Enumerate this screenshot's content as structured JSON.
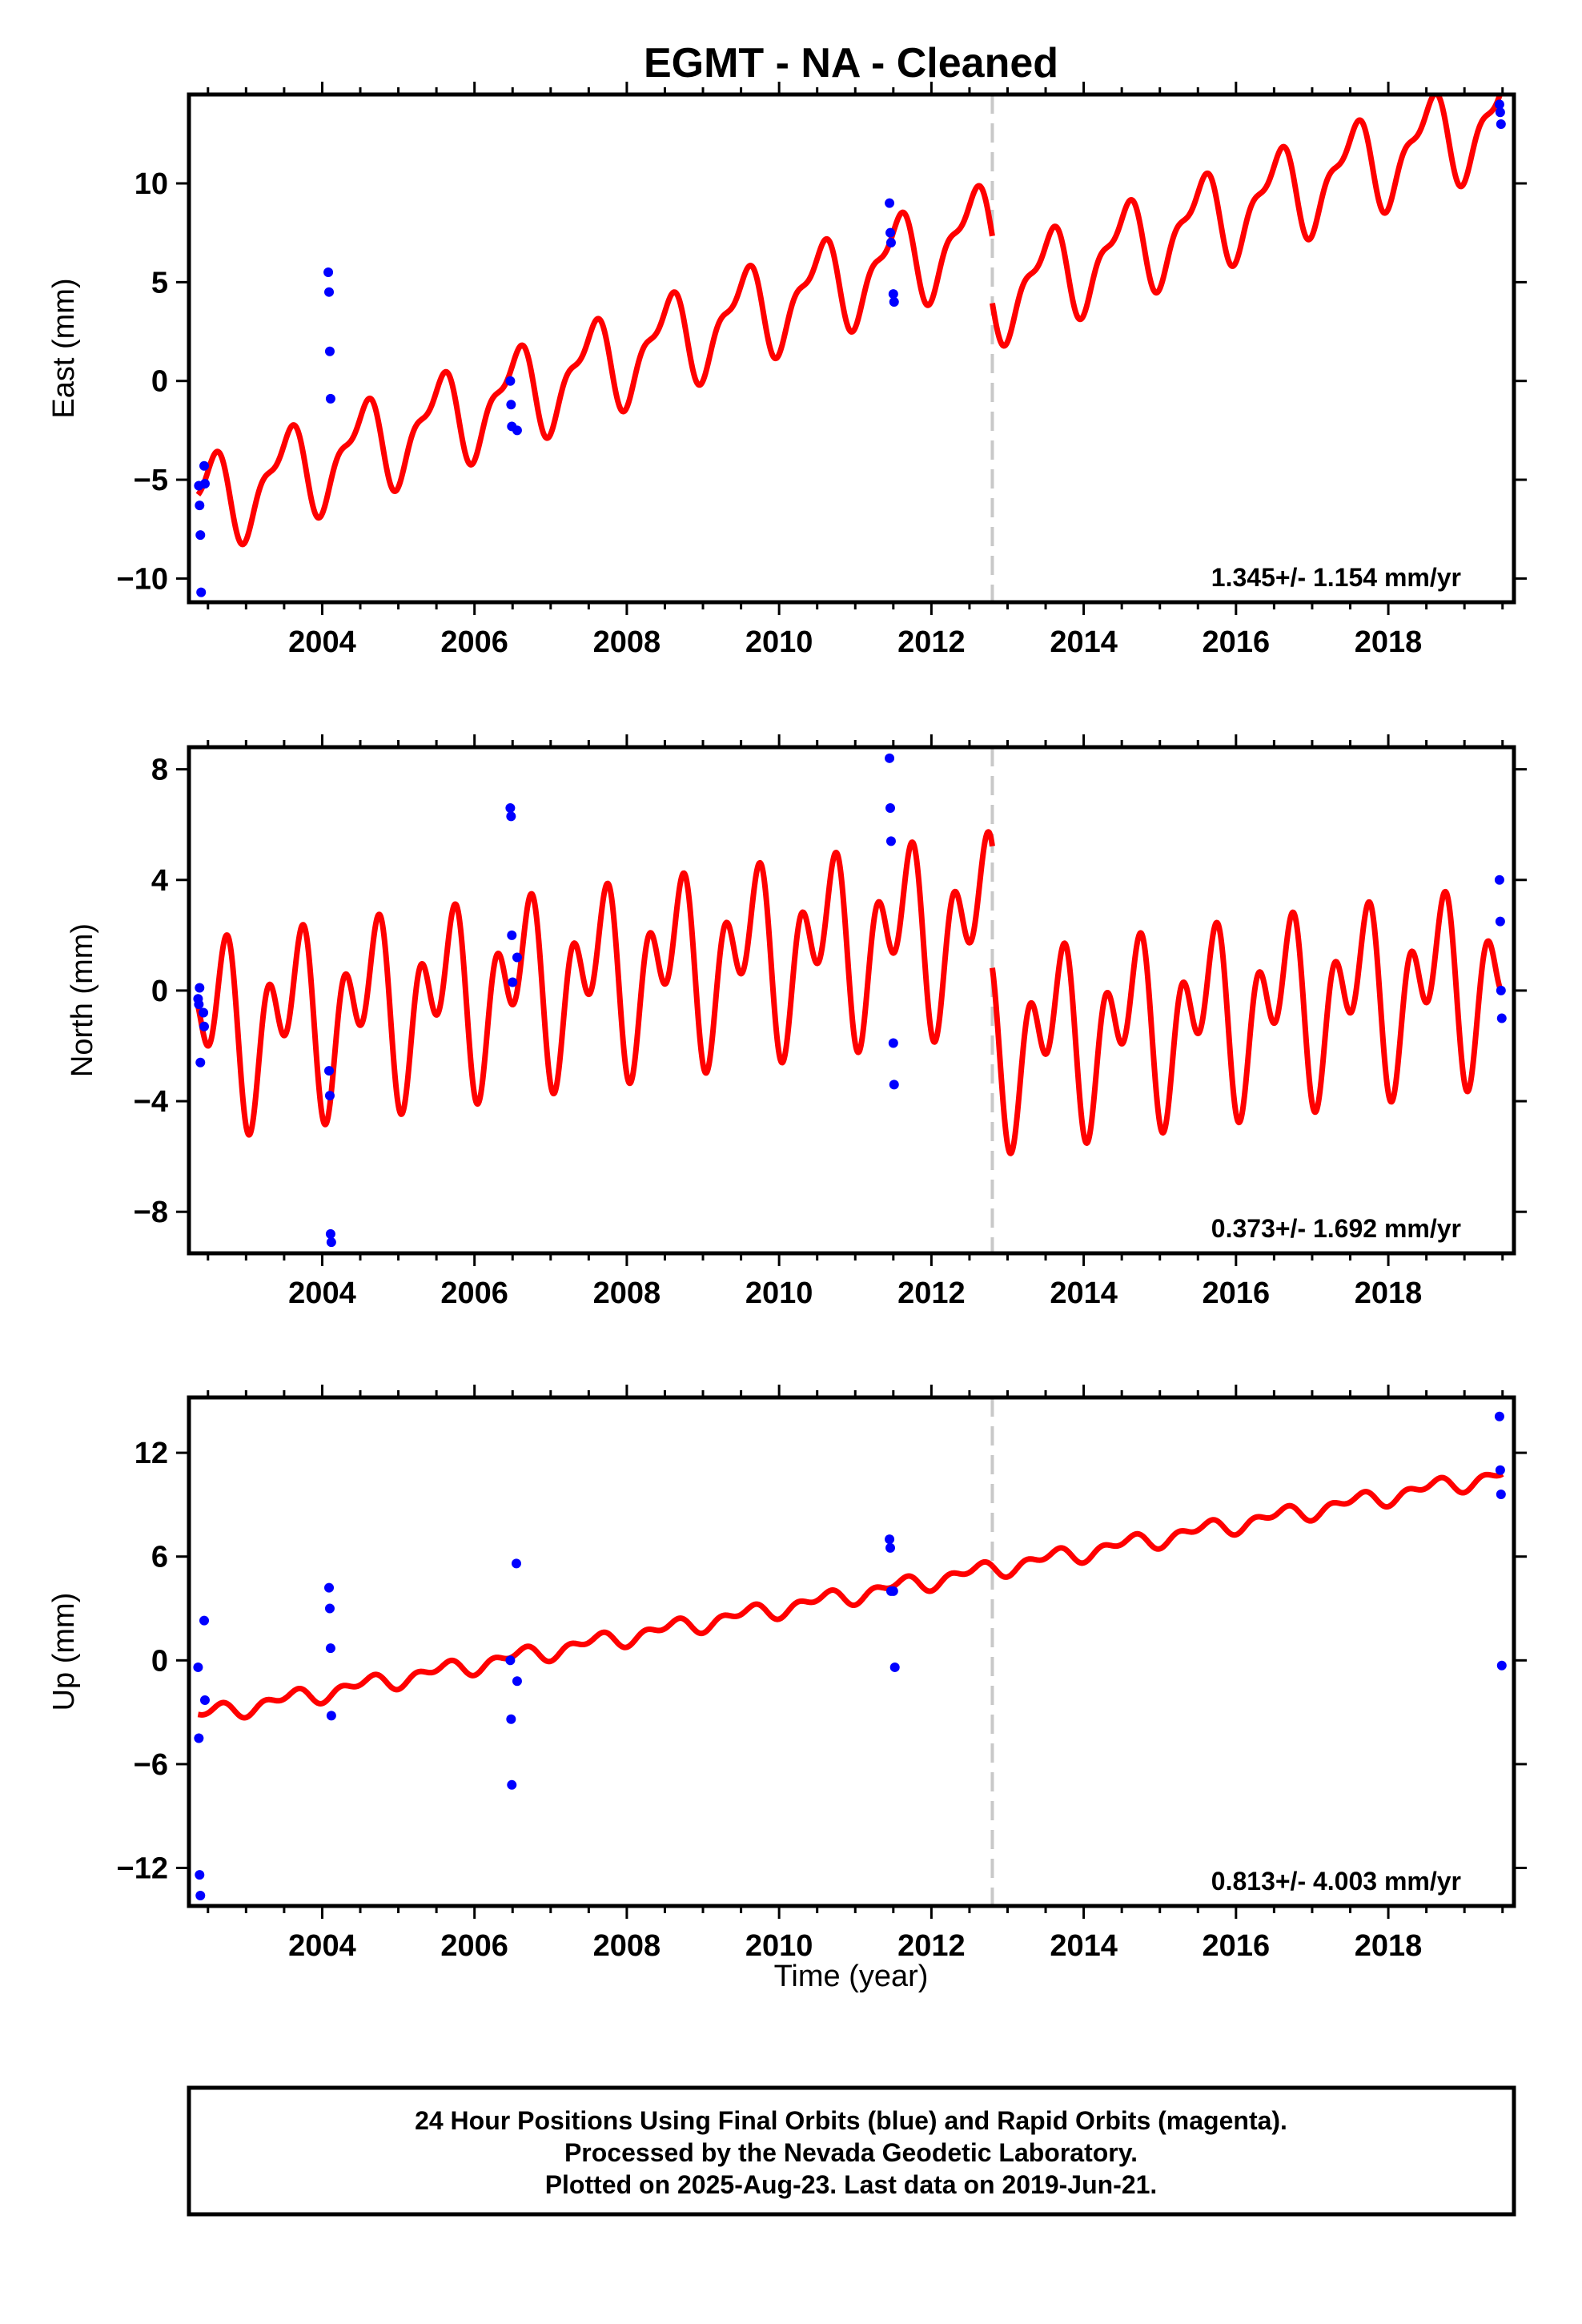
{
  "colors": {
    "model_line": "#ff0000",
    "final_orbits": "#0000ff",
    "break_line": "#c8c8c8",
    "frame": "#000000"
  },
  "title": "EGMT  - NA - Cleaned",
  "xlabel": "Time (year)",
  "footer": {
    "line1": "24 Hour Positions Using Final Orbits (blue) and Rapid Orbits (magenta).",
    "line2": "Processed by the Nevada Geodetic Laboratory.",
    "line3": "Plotted on 2025-Aug-23. Last data on 2019-Jun-21."
  },
  "chart_data": [
    {
      "type": "scatter",
      "ylabel": "East (mm)",
      "rate_text": "1.345+/- 1.154 mm/yr",
      "xlim": [
        2002.25,
        2019.65
      ],
      "ylim": [
        -11.2,
        14.5
      ],
      "x_ticks": [
        2004,
        2006,
        2008,
        2010,
        2012,
        2014,
        2016,
        2018
      ],
      "y_ticks": [
        -10,
        -5,
        0,
        5,
        10
      ],
      "y_tick_labels": [
        "−10",
        "−5",
        "0",
        "5",
        "10"
      ],
      "break_x": 2012.8,
      "model": {
        "before": {
          "x0": 2002.37,
          "x1": 2012.8,
          "base": -6.3,
          "slope": 1.345,
          "offset": 0.0
        },
        "after": {
          "x0": 2012.8,
          "x1": 2019.5,
          "base": -6.3,
          "slope": 1.345,
          "offset": -3.4
        },
        "annual_amp": 2.1,
        "annual_phase": 0.27,
        "semi_amp": 0.9,
        "semi_phase": 0.05
      },
      "points": [
        {
          "x": 2002.38,
          "y": -5.3
        },
        {
          "x": 2002.39,
          "y": -6.3
        },
        {
          "x": 2002.4,
          "y": -7.8
        },
        {
          "x": 2002.41,
          "y": -10.7
        },
        {
          "x": 2002.45,
          "y": -4.3
        },
        {
          "x": 2002.46,
          "y": -5.2
        },
        {
          "x": 2004.08,
          "y": 5.5
        },
        {
          "x": 2004.09,
          "y": 4.5
        },
        {
          "x": 2004.1,
          "y": 1.5
        },
        {
          "x": 2004.11,
          "y": -0.9
        },
        {
          "x": 2006.47,
          "y": 0.0
        },
        {
          "x": 2006.48,
          "y": -1.2
        },
        {
          "x": 2006.49,
          "y": -2.3
        },
        {
          "x": 2006.56,
          "y": -2.5
        },
        {
          "x": 2011.45,
          "y": 9.0
        },
        {
          "x": 2011.46,
          "y": 7.5
        },
        {
          "x": 2011.47,
          "y": 7.0
        },
        {
          "x": 2011.5,
          "y": 4.4
        },
        {
          "x": 2011.51,
          "y": 4.0
        },
        {
          "x": 2019.46,
          "y": 14.0
        },
        {
          "x": 2019.47,
          "y": 13.6
        },
        {
          "x": 2019.48,
          "y": 13.0
        }
      ]
    },
    {
      "type": "scatter",
      "ylabel": "North (mm)",
      "rate_text": "0.373+/- 1.692 mm/yr",
      "xlim": [
        2002.25,
        2019.65
      ],
      "ylim": [
        -9.5,
        8.8
      ],
      "x_ticks": [
        2004,
        2006,
        2008,
        2010,
        2012,
        2014,
        2016,
        2018
      ],
      "y_ticks": [
        -8,
        -4,
        0,
        4,
        8
      ],
      "y_tick_labels": [
        "−8",
        "−4",
        "0",
        "4",
        "8"
      ],
      "break_x": 2012.8,
      "model": {
        "before": {
          "x0": 2002.37,
          "x1": 2012.8,
          "base": -1.5,
          "slope": 0.373,
          "offset": 0.0
        },
        "after": {
          "x0": 2012.8,
          "x1": 2019.5,
          "base": -1.5,
          "slope": 0.373,
          "offset": -4.4
        },
        "annual_amp": 2.0,
        "annual_phase": 0.36,
        "semi_amp": 2.2,
        "semi_phase": 0.15
      },
      "points": [
        {
          "x": 2002.37,
          "y": -0.3
        },
        {
          "x": 2002.38,
          "y": -0.5
        },
        {
          "x": 2002.39,
          "y": 0.1
        },
        {
          "x": 2002.4,
          "y": -2.6
        },
        {
          "x": 2002.44,
          "y": -0.8
        },
        {
          "x": 2002.45,
          "y": -1.3
        },
        {
          "x": 2004.09,
          "y": -2.9
        },
        {
          "x": 2004.1,
          "y": -3.8
        },
        {
          "x": 2004.11,
          "y": -8.8
        },
        {
          "x": 2004.12,
          "y": -9.1
        },
        {
          "x": 2006.47,
          "y": 6.6
        },
        {
          "x": 2006.48,
          "y": 6.3
        },
        {
          "x": 2006.49,
          "y": 2.0
        },
        {
          "x": 2006.5,
          "y": 0.3
        },
        {
          "x": 2006.56,
          "y": 1.2
        },
        {
          "x": 2011.45,
          "y": 8.4
        },
        {
          "x": 2011.46,
          "y": 6.6
        },
        {
          "x": 2011.47,
          "y": 5.4
        },
        {
          "x": 2011.5,
          "y": -1.9
        },
        {
          "x": 2011.51,
          "y": -3.4
        },
        {
          "x": 2019.46,
          "y": 4.0
        },
        {
          "x": 2019.47,
          "y": 2.5
        },
        {
          "x": 2019.48,
          "y": 0.0
        },
        {
          "x": 2019.49,
          "y": -1.0
        }
      ]
    },
    {
      "type": "scatter",
      "ylabel": "Up (mm)",
      "rate_text": "0.813+/- 4.003 mm/yr",
      "xlim": [
        2002.25,
        2019.65
      ],
      "ylim": [
        -14.2,
        15.2
      ],
      "x_ticks": [
        2004,
        2006,
        2008,
        2010,
        2012,
        2014,
        2016,
        2018
      ],
      "y_ticks": [
        -12,
        -6,
        0,
        6,
        12
      ],
      "y_tick_labels": [
        "−12",
        "−6",
        "0",
        "6",
        "12"
      ],
      "break_x": 2012.8,
      "model": {
        "before": {
          "x0": 2002.37,
          "x1": 2012.8,
          "base": -3.2,
          "slope": 0.813,
          "offset": 0.0
        },
        "after": {
          "x0": 2012.8,
          "x1": 2019.5,
          "base": -3.2,
          "slope": 0.813,
          "offset": 0.0
        },
        "annual_amp": 0.35,
        "annual_phase": 0.3,
        "semi_amp": 0.3,
        "semi_phase": 0.1
      },
      "points": [
        {
          "x": 2002.37,
          "y": -0.4
        },
        {
          "x": 2002.38,
          "y": -4.5
        },
        {
          "x": 2002.39,
          "y": -12.4
        },
        {
          "x": 2002.4,
          "y": -13.6
        },
        {
          "x": 2002.45,
          "y": 2.3
        },
        {
          "x": 2002.46,
          "y": -2.3
        },
        {
          "x": 2004.09,
          "y": 4.2
        },
        {
          "x": 2004.1,
          "y": 3.0
        },
        {
          "x": 2004.11,
          "y": 0.7
        },
        {
          "x": 2004.12,
          "y": -3.2
        },
        {
          "x": 2006.47,
          "y": 0.0
        },
        {
          "x": 2006.48,
          "y": -3.4
        },
        {
          "x": 2006.49,
          "y": -7.2
        },
        {
          "x": 2006.55,
          "y": 5.6
        },
        {
          "x": 2006.56,
          "y": -1.2
        },
        {
          "x": 2011.45,
          "y": 7.0
        },
        {
          "x": 2011.46,
          "y": 6.5
        },
        {
          "x": 2011.47,
          "y": 4.0
        },
        {
          "x": 2011.5,
          "y": 4.0
        },
        {
          "x": 2011.52,
          "y": -0.4
        },
        {
          "x": 2019.46,
          "y": 14.1
        },
        {
          "x": 2019.47,
          "y": 11.0
        },
        {
          "x": 2019.48,
          "y": 9.6
        },
        {
          "x": 2019.49,
          "y": -0.3
        }
      ]
    }
  ]
}
